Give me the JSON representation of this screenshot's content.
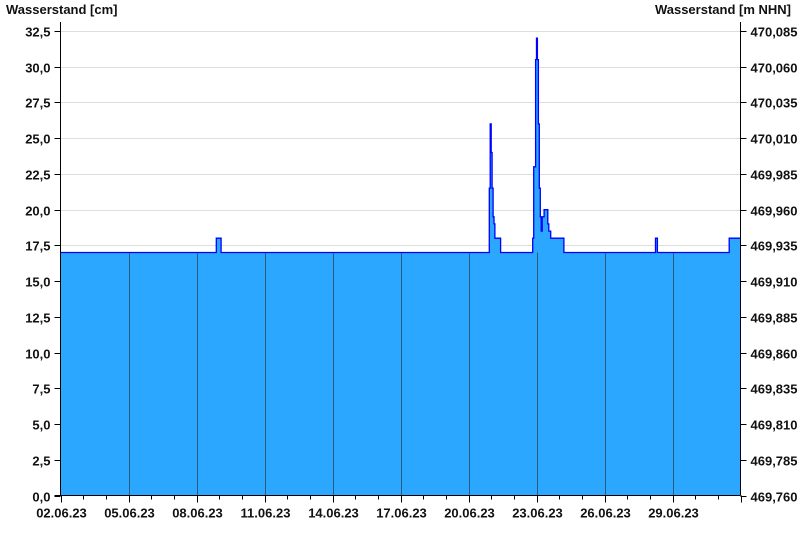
{
  "chart_data": {
    "type": "area",
    "left_axis_title": "Wasserstand [cm]",
    "right_axis_title": "Wasserstand [m NHN]",
    "ylim": [
      0,
      33.13
    ],
    "xlim": [
      "2023-06-02T00:00",
      "2023-07-02T00:00"
    ],
    "y_ticks": [
      "0,0",
      "2,5",
      "5,0",
      "7,5",
      "10,0",
      "12,5",
      "15,0",
      "17,5",
      "20,0",
      "22,5",
      "25,0",
      "27,5",
      "30,0",
      "32,5"
    ],
    "y_tick_values": [
      0,
      2.5,
      5,
      7.5,
      10,
      12.5,
      15,
      17.5,
      20,
      22.5,
      25,
      27.5,
      30,
      32.5
    ],
    "right_ticks": [
      "469,760",
      "469,785",
      "469,810",
      "469,835",
      "469,860",
      "469,885",
      "469,910",
      "469,935",
      "469,960",
      "469,985",
      "470,010",
      "470,035",
      "470,060",
      "470,085"
    ],
    "x_ticks": [
      "02.06.23",
      "05.06.23",
      "08.06.23",
      "11.06.23",
      "14.06.23",
      "17.06.23",
      "20.06.23",
      "23.06.23",
      "26.06.23",
      "29.06.23"
    ],
    "x_tick_dates": [
      "2023-06-02",
      "2023-06-05",
      "2023-06-08",
      "2023-06-11",
      "2023-06-14",
      "2023-06-17",
      "2023-06-20",
      "2023-06-23",
      "2023-06-26",
      "2023-06-29"
    ],
    "grid": true,
    "colors": {
      "fill": "#2ca7ff",
      "line": "#0000ff",
      "grid": "#dddddd",
      "vgrid": "#2a5a80"
    },
    "series": [
      {
        "points": [
          [
            "2023-06-02T00:00",
            17.0
          ],
          [
            "2023-06-08T21:00",
            18.0
          ],
          [
            "2023-06-09T02:00",
            17.0
          ],
          [
            "2023-06-20T22:00",
            21.5
          ],
          [
            "2023-06-20T23:00",
            26.0
          ],
          [
            "2023-06-21T00:00",
            24.0
          ],
          [
            "2023-06-21T01:00",
            21.5
          ],
          [
            "2023-06-21T02:00",
            19.5
          ],
          [
            "2023-06-21T03:00",
            19.0
          ],
          [
            "2023-06-21T04:00",
            18.0
          ],
          [
            "2023-06-21T10:00",
            17.0
          ],
          [
            "2023-06-22T20:00",
            18.0
          ],
          [
            "2023-06-22T21:00",
            23.0
          ],
          [
            "2023-06-22T23:00",
            30.5
          ],
          [
            "2023-06-23T00:00",
            32.0
          ],
          [
            "2023-06-23T01:00",
            30.5
          ],
          [
            "2023-06-23T02:00",
            26.0
          ],
          [
            "2023-06-23T03:00",
            21.5
          ],
          [
            "2023-06-23T04:00",
            19.5
          ],
          [
            "2023-06-23T05:00",
            18.5
          ],
          [
            "2023-06-23T06:00",
            19.5
          ],
          [
            "2023-06-23T08:00",
            20.0
          ],
          [
            "2023-06-23T12:00",
            19.0
          ],
          [
            "2023-06-23T13:00",
            18.5
          ],
          [
            "2023-06-23T15:00",
            18.0
          ],
          [
            "2023-06-24T05:00",
            17.0
          ],
          [
            "2023-06-28T06:00",
            18.0
          ],
          [
            "2023-06-28T08:00",
            17.0
          ],
          [
            "2023-07-01T12:00",
            18.0
          ],
          [
            "2023-07-02T00:00",
            18.0
          ]
        ]
      }
    ]
  }
}
